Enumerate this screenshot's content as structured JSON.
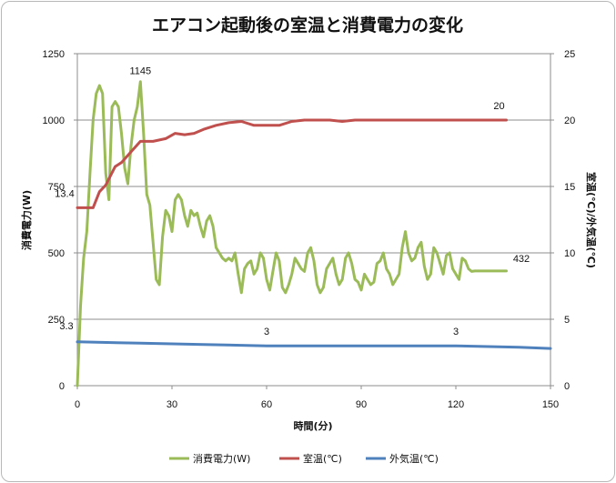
{
  "chart_data": {
    "type": "line",
    "title": "エアコン起動後の室温と消費電力の変化",
    "xlabel": "時間(分)",
    "ylabel_left": "消費電力(W)",
    "ylabel_right": "室温(℃)/外気温(℃)",
    "xlim": [
      0,
      150
    ],
    "xticks": [
      "0",
      "30",
      "60",
      "90",
      "120",
      "150"
    ],
    "ylim_left": [
      0,
      1250
    ],
    "yticks_left": [
      "0",
      "250",
      "500",
      "750",
      "1000",
      "1250"
    ],
    "ylim_right": [
      0,
      25
    ],
    "yticks_right": [
      "0",
      "5",
      "10",
      "15",
      "20",
      "25"
    ],
    "grid": "horizontal",
    "legend_position": "bottom",
    "series": [
      {
        "name": "消費電力(W)",
        "axis": "left",
        "color": "#9bbb59",
        "x": [
          0,
          1,
          2,
          3,
          4,
          5,
          6,
          7,
          8,
          9,
          10,
          11,
          12,
          13,
          14,
          15,
          16,
          17,
          18,
          19,
          20,
          21,
          22,
          23,
          24,
          25,
          26,
          27,
          28,
          29,
          30,
          31,
          32,
          33,
          34,
          35,
          36,
          37,
          38,
          39,
          40,
          41,
          42,
          43,
          44,
          45,
          46,
          47,
          48,
          49,
          50,
          51,
          52,
          53,
          54,
          55,
          56,
          57,
          58,
          59,
          60,
          61,
          62,
          63,
          64,
          65,
          66,
          67,
          68,
          69,
          70,
          71,
          72,
          73,
          74,
          75,
          76,
          77,
          78,
          79,
          80,
          81,
          82,
          83,
          84,
          85,
          86,
          87,
          88,
          89,
          90,
          91,
          92,
          93,
          94,
          95,
          96,
          97,
          98,
          99,
          100,
          101,
          102,
          103,
          104,
          105,
          106,
          107,
          108,
          109,
          110,
          111,
          112,
          113,
          114,
          115,
          116,
          117,
          118,
          119,
          120,
          121,
          122,
          123,
          124,
          125,
          126,
          127,
          128,
          129,
          130,
          131,
          132,
          133,
          134,
          135,
          136
        ],
        "values": [
          0,
          300,
          480,
          580,
          800,
          1000,
          1100,
          1130,
          1100,
          800,
          700,
          1050,
          1070,
          1050,
          950,
          820,
          760,
          900,
          1000,
          1050,
          1145,
          950,
          720,
          680,
          540,
          400,
          380,
          560,
          660,
          640,
          580,
          700,
          720,
          700,
          640,
          600,
          660,
          640,
          650,
          600,
          560,
          620,
          640,
          600,
          520,
          500,
          480,
          470,
          480,
          470,
          500,
          420,
          350,
          440,
          460,
          470,
          420,
          440,
          500,
          480,
          400,
          360,
          430,
          500,
          470,
          370,
          350,
          380,
          420,
          480,
          460,
          440,
          430,
          500,
          520,
          470,
          380,
          350,
          370,
          440,
          460,
          480,
          420,
          380,
          400,
          480,
          500,
          460,
          400,
          390,
          360,
          420,
          400,
          380,
          390,
          460,
          470,
          500,
          440,
          420,
          380,
          400,
          420,
          520,
          580,
          500,
          470,
          480,
          520,
          540,
          450,
          400,
          420,
          520,
          500,
          460,
          420,
          490,
          500,
          440,
          420,
          400,
          480,
          470,
          440,
          430,
          432,
          432,
          432,
          432,
          432,
          432,
          432,
          432,
          432,
          432,
          432
        ],
        "annotations": [
          {
            "x": 20,
            "label": "1145"
          },
          {
            "x": 135,
            "label": "432"
          }
        ]
      },
      {
        "name": "室温(℃)",
        "axis": "right",
        "color": "#c0504d",
        "x": [
          0,
          5,
          7,
          9,
          12,
          14,
          17,
          20,
          24,
          28,
          31,
          34,
          37,
          40,
          44,
          48,
          52,
          56,
          60,
          64,
          68,
          72,
          76,
          80,
          84,
          88,
          92,
          96,
          100,
          104,
          108,
          112,
          116,
          120,
          125,
          130,
          136
        ],
        "values": [
          13.4,
          13.4,
          14.6,
          15.1,
          16.5,
          16.8,
          17.6,
          18.4,
          18.4,
          18.6,
          19.0,
          18.9,
          19.0,
          19.3,
          19.6,
          19.8,
          19.9,
          19.6,
          19.6,
          19.6,
          19.9,
          20.0,
          20.0,
          20.0,
          19.9,
          20.0,
          20.0,
          20.0,
          20.0,
          20.0,
          20.0,
          20.0,
          20.0,
          20.0,
          20.0,
          20.0,
          20.0
        ],
        "annotations": [
          {
            "x": 0,
            "label": "13.4"
          },
          {
            "x": 136,
            "label": "20"
          }
        ]
      },
      {
        "name": "外気温(℃)",
        "axis": "right",
        "color": "#4f81bd",
        "x": [
          0,
          20,
          40,
          60,
          80,
          100,
          120,
          140,
          150
        ],
        "values": [
          3.3,
          3.2,
          3.1,
          3.0,
          3.0,
          3.0,
          3.0,
          2.9,
          2.8
        ],
        "annotations": [
          {
            "x": 0,
            "label": "3.3"
          },
          {
            "x": 60,
            "label": "3"
          },
          {
            "x": 120,
            "label": "3"
          }
        ]
      }
    ]
  }
}
